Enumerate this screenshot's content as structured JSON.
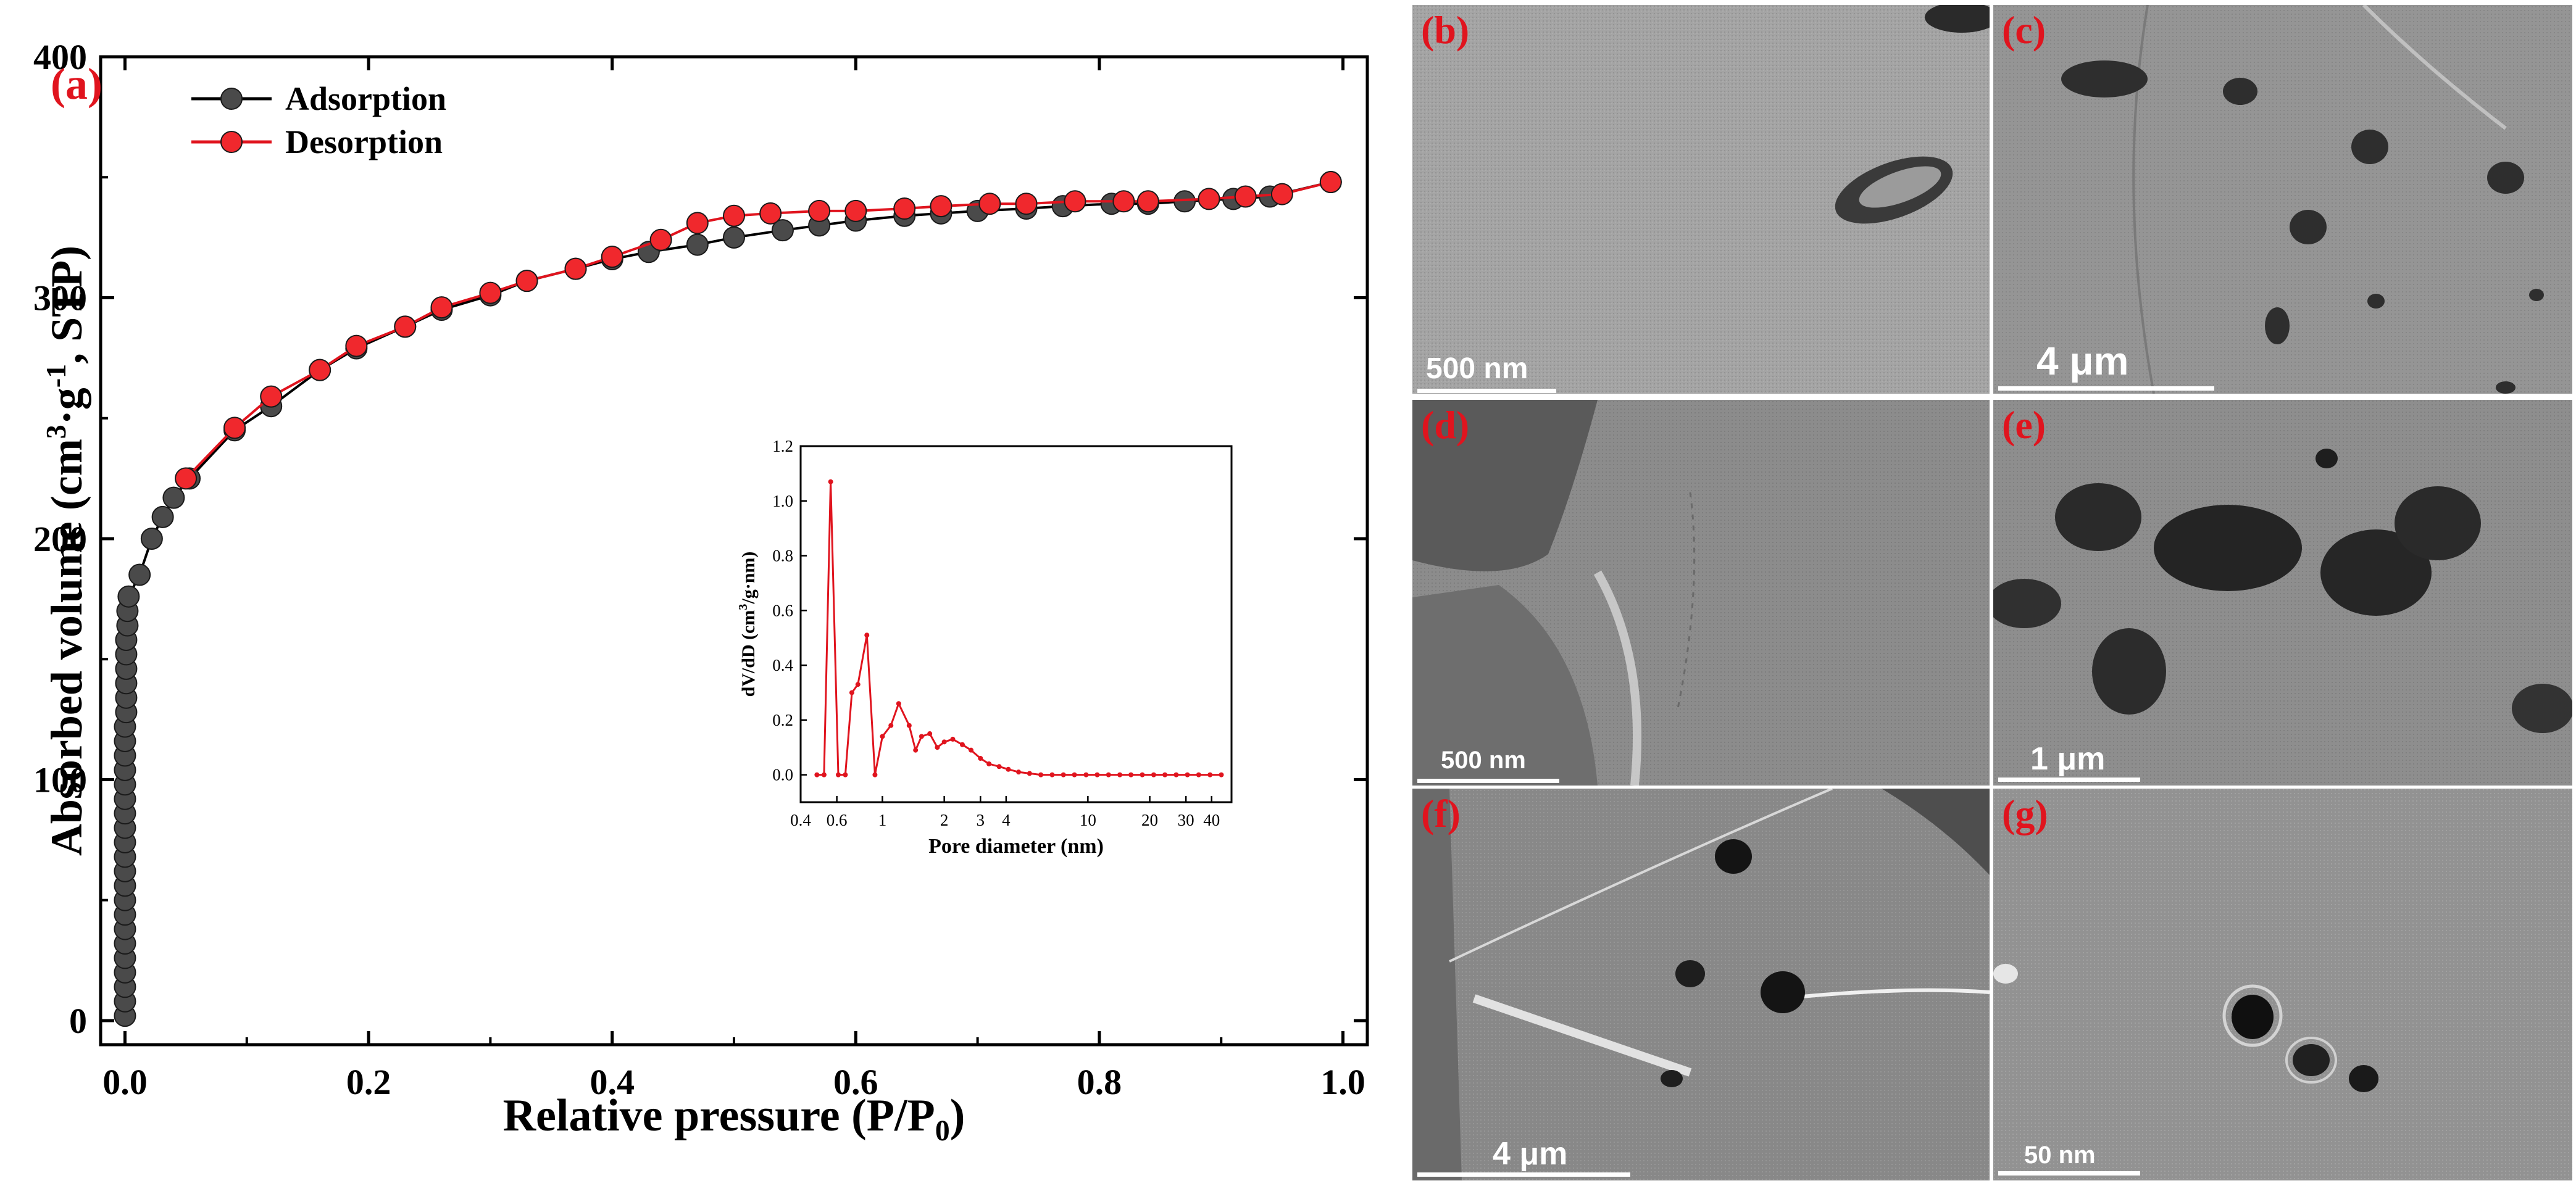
{
  "colors": {
    "adsorption_marker": "#4a4a4a",
    "adsorption_line": "#000000",
    "desorption_marker": "#f0282d",
    "desorption_line": "#e0141e",
    "panel_label": "#e0141e",
    "sem_scale": "#ffffff"
  },
  "chart_data": [
    {
      "type": "scatter",
      "panel_label": "(a)",
      "xlabel": "Relative pressure (P/P0)",
      "xlabel_sub": "0",
      "ylabel": "Absorbed volume (cm3·g-1, STP)",
      "ylabel_parts": {
        "pre": "Absorbed volume (cm",
        "sup1": "3",
        "mid": "·g",
        "sup2": "-1",
        "post": ",  STP)"
      },
      "xlim": [
        -0.02,
        1.02
      ],
      "ylim": [
        -10,
        400
      ],
      "xticks": [
        0.0,
        0.2,
        0.4,
        0.6,
        0.8,
        1.0
      ],
      "xtick_labels": [
        "0.0",
        "0.2",
        "0.4",
        "0.6",
        "0.8",
        "1.0"
      ],
      "yticks": [
        0,
        100,
        200,
        300,
        400
      ],
      "ytick_labels": [
        "0",
        "100",
        "200",
        "300",
        "400"
      ],
      "legend_position": "top-left",
      "series": [
        {
          "name": "Adsorption",
          "points": [
            [
              0.0,
              2
            ],
            [
              0.0,
              8
            ],
            [
              0.0,
              14
            ],
            [
              0.0,
              20
            ],
            [
              0.0,
              26
            ],
            [
              0.0,
              32
            ],
            [
              0.0,
              38
            ],
            [
              0.0,
              44
            ],
            [
              0.0,
              50
            ],
            [
              0.0,
              56
            ],
            [
              0.0,
              62
            ],
            [
              0.0,
              68
            ],
            [
              0.0,
              74
            ],
            [
              0.0,
              80
            ],
            [
              0.0,
              86
            ],
            [
              0.0,
              92
            ],
            [
              0.0,
              98
            ],
            [
              0.0,
              104
            ],
            [
              0.0,
              110
            ],
            [
              0.0,
              116
            ],
            [
              0.0,
              122
            ],
            [
              0.001,
              128
            ],
            [
              0.001,
              134
            ],
            [
              0.001,
              140
            ],
            [
              0.001,
              146
            ],
            [
              0.001,
              152
            ],
            [
              0.001,
              158
            ],
            [
              0.002,
              164
            ],
            [
              0.002,
              170
            ],
            [
              0.003,
              176
            ],
            [
              0.012,
              185
            ],
            [
              0.022,
              200
            ],
            [
              0.031,
              209
            ],
            [
              0.04,
              217
            ],
            [
              0.053,
              225
            ],
            [
              0.09,
              245
            ],
            [
              0.12,
              255
            ],
            [
              0.16,
              270
            ],
            [
              0.19,
              279
            ],
            [
              0.23,
              288
            ],
            [
              0.26,
              295
            ],
            [
              0.3,
              301
            ],
            [
              0.33,
              307
            ],
            [
              0.37,
              312
            ],
            [
              0.4,
              316
            ],
            [
              0.43,
              319
            ],
            [
              0.47,
              322
            ],
            [
              0.5,
              325
            ],
            [
              0.54,
              328
            ],
            [
              0.57,
              330
            ],
            [
              0.6,
              332
            ],
            [
              0.64,
              334
            ],
            [
              0.67,
              335
            ],
            [
              0.7,
              336
            ],
            [
              0.74,
              337
            ],
            [
              0.77,
              338
            ],
            [
              0.81,
              339
            ],
            [
              0.84,
              339
            ],
            [
              0.87,
              340
            ],
            [
              0.91,
              341
            ],
            [
              0.94,
              342
            ],
            [
              0.99,
              348
            ]
          ]
        },
        {
          "name": "Desorption",
          "points": [
            [
              0.99,
              348
            ],
            [
              0.95,
              343
            ],
            [
              0.92,
              342
            ],
            [
              0.89,
              341
            ],
            [
              0.84,
              340
            ],
            [
              0.82,
              340
            ],
            [
              0.78,
              340
            ],
            [
              0.74,
              339
            ],
            [
              0.71,
              339
            ],
            [
              0.67,
              338
            ],
            [
              0.64,
              337
            ],
            [
              0.6,
              336
            ],
            [
              0.57,
              336
            ],
            [
              0.53,
              335
            ],
            [
              0.5,
              334
            ],
            [
              0.47,
              331
            ],
            [
              0.44,
              324
            ],
            [
              0.4,
              317
            ],
            [
              0.37,
              312
            ],
            [
              0.33,
              307
            ],
            [
              0.3,
              302
            ],
            [
              0.26,
              296
            ],
            [
              0.23,
              288
            ],
            [
              0.19,
              280
            ],
            [
              0.16,
              270
            ],
            [
              0.12,
              259
            ],
            [
              0.09,
              246
            ],
            [
              0.05,
              225
            ]
          ]
        }
      ]
    },
    {
      "type": "line",
      "inset": true,
      "xlabel": "Pore diameter (nm)",
      "ylabel": "dV/dD (cm3/g·nm)",
      "ylabel_parts": {
        "pre": "dV/dD (cm",
        "sup1": "3",
        "post": "/g·nm)"
      },
      "x_scale": "log",
      "xlim": [
        0.4,
        50
      ],
      "ylim": [
        -0.1,
        1.2
      ],
      "xticks": [
        0.4,
        0.6,
        1,
        2,
        3,
        4,
        10,
        20,
        30,
        40
      ],
      "xtick_labels": [
        "0.4",
        "0.6",
        "1",
        "2",
        "3",
        "4",
        "10",
        "20",
        "30",
        "40"
      ],
      "yticks": [
        0.0,
        0.2,
        0.4,
        0.6,
        0.8,
        1.0,
        1.2
      ],
      "ytick_labels": [
        "0.0",
        "0.2",
        "0.4",
        "0.6",
        "0.8",
        "1.0",
        "1.2"
      ],
      "series": [
        {
          "points": [
            [
              0.48,
              0.0
            ],
            [
              0.52,
              0.0
            ],
            [
              0.56,
              1.07
            ],
            [
              0.61,
              0.0
            ],
            [
              0.66,
              0.0
            ],
            [
              0.71,
              0.3
            ],
            [
              0.76,
              0.33
            ],
            [
              0.84,
              0.51
            ],
            [
              0.92,
              0.0
            ],
            [
              1.0,
              0.14
            ],
            [
              1.1,
              0.18
            ],
            [
              1.2,
              0.26
            ],
            [
              1.35,
              0.18
            ],
            [
              1.45,
              0.09
            ],
            [
              1.55,
              0.14
            ],
            [
              1.7,
              0.15
            ],
            [
              1.85,
              0.1
            ],
            [
              2.0,
              0.12
            ],
            [
              2.2,
              0.13
            ],
            [
              2.45,
              0.11
            ],
            [
              2.7,
              0.09
            ],
            [
              3.0,
              0.06
            ],
            [
              3.3,
              0.04
            ],
            [
              3.7,
              0.03
            ],
            [
              4.1,
              0.02
            ],
            [
              4.6,
              0.01
            ],
            [
              5.2,
              0.005
            ],
            [
              5.9,
              0.0
            ],
            [
              6.7,
              0.0
            ],
            [
              7.6,
              0.0
            ],
            [
              8.6,
              0.0
            ],
            [
              9.8,
              0.0
            ],
            [
              11.1,
              0.0
            ],
            [
              12.6,
              0.0
            ],
            [
              14.3,
              0.0
            ],
            [
              16.2,
              0.0
            ],
            [
              18.4,
              0.0
            ],
            [
              20.9,
              0.0
            ],
            [
              23.7,
              0.0
            ],
            [
              26.9,
              0.0
            ],
            [
              30.5,
              0.0
            ],
            [
              34.6,
              0.0
            ],
            [
              39.3,
              0.0
            ],
            [
              44.6,
              0.0
            ]
          ]
        }
      ]
    }
  ],
  "sem_panels": [
    {
      "label": "(b)",
      "scale": "500 nm"
    },
    {
      "label": "(c)",
      "scale": "4 μm"
    },
    {
      "label": "(d)",
      "scale": "500 nm"
    },
    {
      "label": "(e)",
      "scale": "1 μm"
    },
    {
      "label": "(f)",
      "scale": "4 μm"
    },
    {
      "label": "(g)",
      "scale": "50 nm"
    }
  ]
}
